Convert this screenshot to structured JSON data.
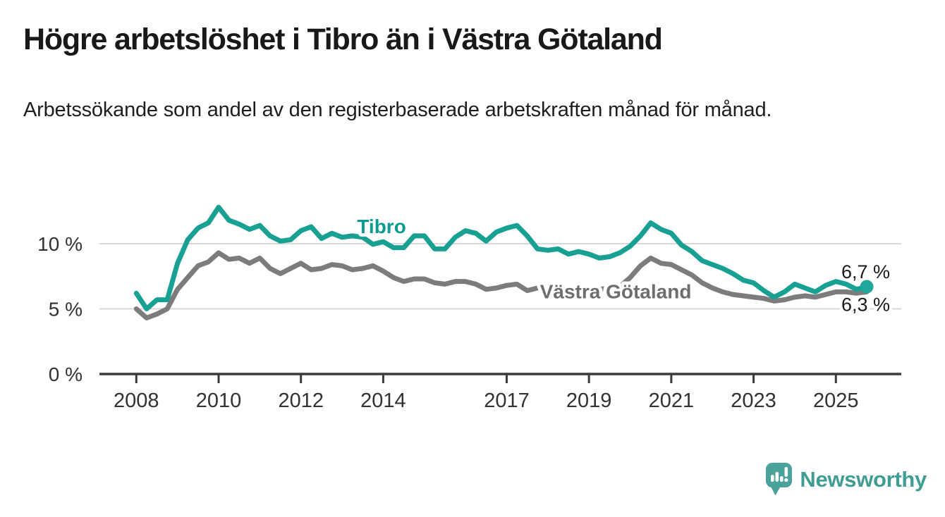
{
  "header": {
    "title": "Högre arbetslöshet i Tibro än i Västra Götaland",
    "subtitle": "Arbetssökande som andel av den registerbaserade arbetskraften månad för månad."
  },
  "logo": {
    "text": "Newsworthy",
    "icon_color": "#4aa29a",
    "text_color": "#3f9d94"
  },
  "chart_data": {
    "type": "line",
    "title": "Högre arbetslöshet i Tibro än i Västra Götaland",
    "xlabel": "",
    "ylabel": "",
    "ylim": [
      0,
      13.5
    ],
    "xlim": [
      2008,
      2025.9
    ],
    "grid": "horizontal",
    "legend_position": "inline-labels",
    "style": {
      "grid_color": "#d8d8d8",
      "axis_color": "#3b3b3b",
      "tick_label_color": "#323232",
      "value_label_color": "#1a1a1a"
    },
    "x_axis": {
      "ticks": [
        {
          "year": 2008,
          "label": "2008"
        },
        {
          "year": 2010,
          "label": "2010"
        },
        {
          "year": 2012,
          "label": "2012"
        },
        {
          "year": 2014,
          "label": "2014"
        },
        {
          "year": 2017,
          "label": "2017"
        },
        {
          "year": 2019,
          "label": "2019"
        },
        {
          "year": 2021,
          "label": "2021"
        },
        {
          "year": 2023,
          "label": "2023"
        },
        {
          "year": 2025,
          "label": "2025"
        }
      ]
    },
    "y_axis": {
      "ticks": [
        {
          "value": 10,
          "label": "10 %"
        },
        {
          "value": 5,
          "label": "5 %"
        },
        {
          "value": 0,
          "label": "0 %"
        }
      ]
    },
    "series": [
      {
        "name": "Tibro",
        "color": "#18a093",
        "label_color": "#0d9b90",
        "marker_end": true,
        "marker_color": "#1fa79b",
        "end_label": "6,7 %",
        "inline_label": {
          "x": 2013.96,
          "y": 11.35
        },
        "x_start": 2008,
        "x_step": 0.25,
        "values": [
          6.2,
          5.0,
          5.7,
          5.7,
          8.5,
          10.3,
          11.2,
          11.6,
          12.8,
          11.8,
          11.5,
          11.1,
          11.4,
          10.6,
          10.2,
          10.3,
          11.0,
          11.3,
          10.4,
          10.8,
          10.5,
          10.6,
          10.5,
          9.95,
          10.15,
          9.7,
          9.7,
          10.6,
          10.6,
          9.6,
          9.6,
          10.5,
          11.0,
          10.8,
          10.2,
          10.9,
          11.2,
          11.4,
          10.6,
          9.6,
          9.5,
          9.6,
          9.2,
          9.4,
          9.2,
          8.9,
          9.0,
          9.3,
          9.8,
          10.6,
          11.6,
          11.1,
          10.8,
          9.9,
          9.4,
          8.7,
          8.4,
          8.1,
          7.7,
          7.2,
          7.0,
          6.4,
          5.9,
          6.3,
          6.9,
          6.6,
          6.3,
          6.8,
          7.1,
          6.9,
          6.5,
          6.7
        ]
      },
      {
        "name": "Västra Götaland",
        "color": "#7c7c7c",
        "label_color": "#6e6e6e",
        "marker_end": false,
        "end_label": "6,3 %",
        "inline_label": {
          "x": 2019.65,
          "y": 6.35
        },
        "x_start": 2008,
        "x_step": 0.25,
        "values": [
          5.0,
          4.3,
          4.6,
          5.0,
          6.5,
          7.4,
          8.3,
          8.6,
          9.3,
          8.8,
          8.9,
          8.5,
          8.9,
          8.1,
          7.7,
          8.1,
          8.5,
          8.0,
          8.1,
          8.4,
          8.3,
          8.0,
          8.1,
          8.3,
          7.9,
          7.4,
          7.1,
          7.3,
          7.3,
          7.0,
          6.9,
          7.1,
          7.1,
          6.9,
          6.5,
          6.6,
          6.8,
          6.9,
          6.4,
          6.6,
          6.6,
          6.5,
          6.5,
          6.4,
          6.5,
          6.5,
          6.6,
          6.7,
          7.4,
          8.3,
          8.9,
          8.5,
          8.4,
          8.0,
          7.6,
          7.0,
          6.6,
          6.3,
          6.1,
          6.0,
          5.9,
          5.8,
          5.6,
          5.7,
          5.9,
          6.0,
          5.9,
          6.1,
          6.3,
          6.3,
          6.2,
          6.3
        ]
      }
    ]
  }
}
